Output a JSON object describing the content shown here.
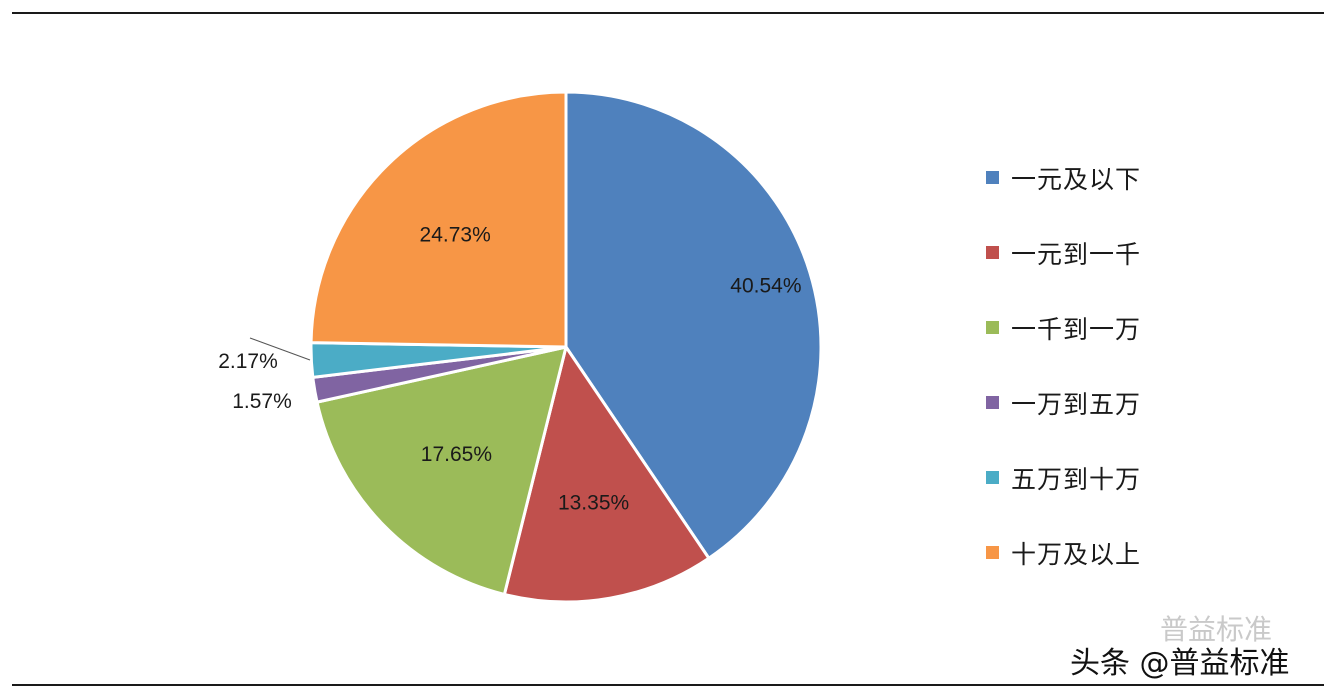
{
  "chart_data": {
    "type": "pie",
    "start_angle_deg": 0,
    "direction": "clockwise",
    "slices": [
      {
        "label": "一元及以下",
        "value": 40.54,
        "value_label": "40.54%",
        "color": "#4f81bd"
      },
      {
        "label": "一元到一千",
        "value": 13.35,
        "value_label": "13.35%",
        "color": "#c0504d"
      },
      {
        "label": "一千到一万",
        "value": 17.65,
        "value_label": "17.65%",
        "color": "#9bbb59"
      },
      {
        "label": "一万到五万",
        "value": 1.57,
        "value_label": "1.57%",
        "color": "#8064a2"
      },
      {
        "label": "五万到十万",
        "value": 2.17,
        "value_label": "2.17%",
        "color": "#4bacc6"
      },
      {
        "label": "十万及以上",
        "value": 24.73,
        "value_label": "24.73%",
        "color": "#f79646"
      }
    ],
    "legend_position": "right"
  },
  "watermark": {
    "text": "头条 @普益标准",
    "ghost_text": "普益标准"
  }
}
